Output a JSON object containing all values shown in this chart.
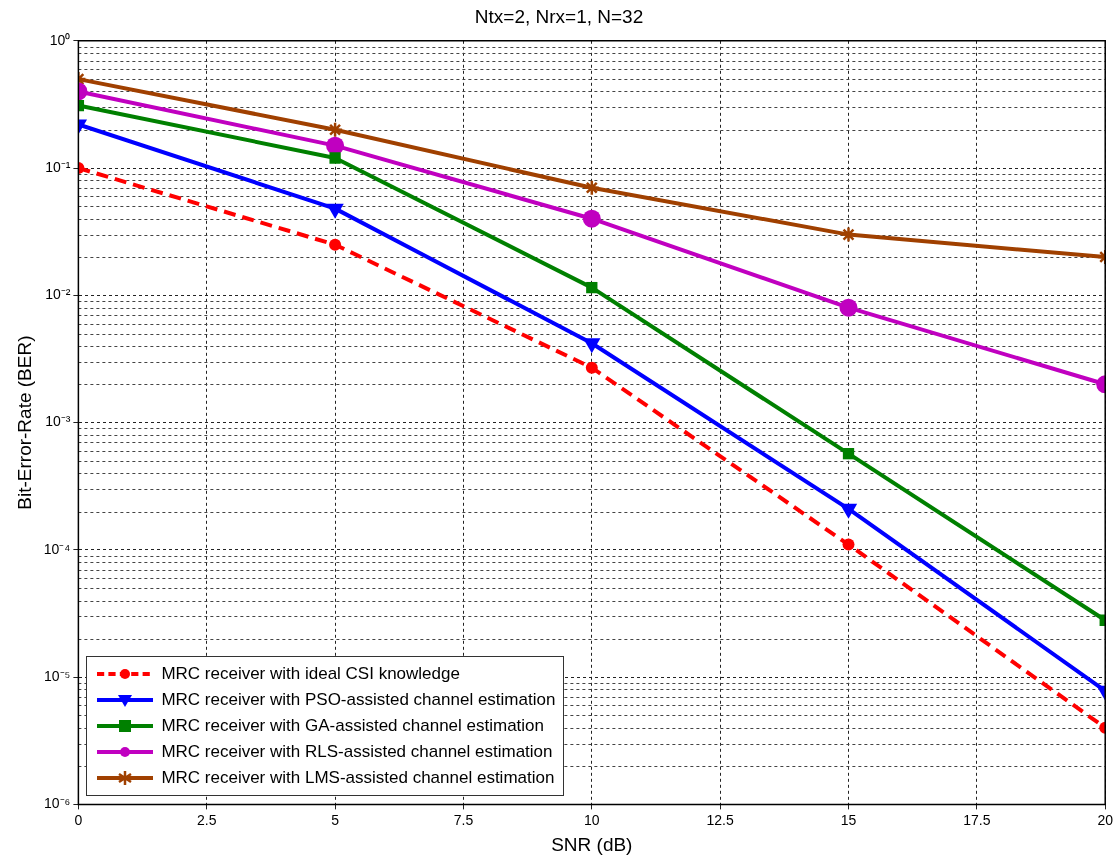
{
  "chart_data": {
    "type": "line",
    "title": "Ntx=2, Nrx=1, N=32",
    "xlabel": "SNR (dB)",
    "ylabel": "Bit-Error-Rate (BER)",
    "x": [
      0,
      5,
      10,
      15,
      20
    ],
    "series": [
      {
        "name": "MRC receiver with ideal CSI knowledge",
        "color": "#ff0000",
        "marker": "circle",
        "line_style": "dashed",
        "values": [
          0.1,
          0.025,
          0.0027,
          0.00011,
          4e-06
        ]
      },
      {
        "name": "MRC receiver with PSO-assisted channel estimation",
        "color": "#0000ff",
        "marker": "triangle",
        "line_style": "solid",
        "values": [
          0.22,
          0.048,
          0.0042,
          0.00021,
          7.8e-06
        ]
      },
      {
        "name": "MRC receiver with GA-assisted channel estimation",
        "color": "#008000",
        "marker": "square",
        "line_style": "solid",
        "values": [
          0.31,
          0.12,
          0.0115,
          0.00057,
          2.8e-05
        ]
      },
      {
        "name": "MRC receiver with RLS-assisted channel estimation",
        "color": "#c000c0",
        "marker": "circle",
        "line_style": "solid",
        "values": [
          0.4,
          0.15,
          0.04,
          0.008,
          0.002
        ]
      },
      {
        "name": "MRC receiver with LMS-assisted channel estimation",
        "color": "#a04000",
        "marker": "cross",
        "line_style": "solid",
        "values": [
          0.5,
          0.2,
          0.07,
          0.03,
          0.02
        ]
      }
    ],
    "log": "y",
    "grid": true,
    "legend": "bottom left",
    "xlim": [
      0,
      20
    ],
    "xticks": [
      0,
      2.5,
      5,
      7.5,
      10,
      12.5,
      15,
      17.5,
      20
    ],
    "ylim": [
      1e-06,
      1
    ],
    "yticks": [
      {
        "value": 1e-06,
        "label": "10⁻⁶"
      },
      {
        "value": 1e-05,
        "label": "10⁻⁵"
      },
      {
        "value": 0.0001,
        "label": "10⁻⁴"
      },
      {
        "value": 0.001,
        "label": "10⁻³"
      },
      {
        "value": 0.01,
        "label": "10⁻²"
      },
      {
        "value": 0.1,
        "label": "10⁻¹"
      },
      {
        "value": 1,
        "label": "10⁰"
      }
    ]
  }
}
